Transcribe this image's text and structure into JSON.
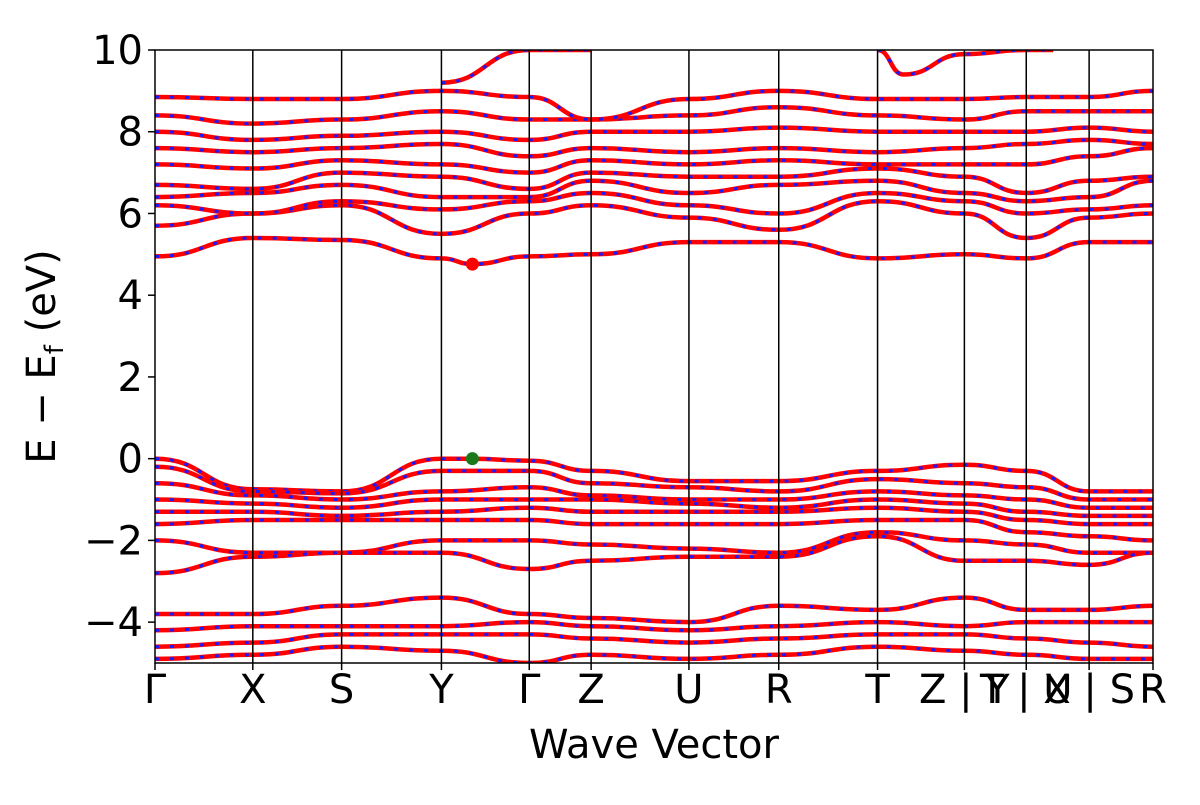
{
  "chart_data": {
    "type": "line",
    "title": "",
    "xlabel": "Wave Vector",
    "ylabel": "E − E",
    "ylabel_sub": "f",
    "ylabel_unit": "(eV)",
    "ylim": [
      -5,
      10
    ],
    "yticks": [
      {
        "value": 10,
        "label": "10"
      },
      {
        "value": 8,
        "label": "8"
      },
      {
        "value": 6,
        "label": "6"
      },
      {
        "value": 4,
        "label": "4"
      },
      {
        "value": 2,
        "label": "2"
      },
      {
        "value": 0,
        "label": "0"
      },
      {
        "value": -2,
        "label": "−2"
      },
      {
        "value": -4,
        "label": "−4"
      }
    ],
    "kpath_length": 10.0,
    "high_symmetry_points": [
      {
        "label": "Γ",
        "k": 0.0
      },
      {
        "label": "X",
        "k": 0.98
      },
      {
        "label": "S",
        "k": 1.87
      },
      {
        "label": "Y",
        "k": 2.87
      },
      {
        "label": "Γ",
        "k": 3.75
      },
      {
        "label": "Z",
        "k": 4.37
      },
      {
        "label": "U",
        "k": 5.35
      },
      {
        "label": "R",
        "k": 6.25
      },
      {
        "label": "T",
        "k": 7.24
      },
      {
        "label": "Z | Y",
        "k": 8.11
      },
      {
        "label": "T | U",
        "k": 8.73
      },
      {
        "label": "X | S",
        "k": 9.36
      },
      {
        "label": "R",
        "k": 10.0
      }
    ],
    "vbm": {
      "k": 3.18,
      "E": 0.0,
      "color": "#1a7a1a"
    },
    "cbm": {
      "k": 3.18,
      "E": 4.76,
      "color": "#ff0000"
    },
    "series": [
      {
        "style": "red solid + blue dashed overlay",
        "color_primary": "#ff0000",
        "color_secondary": "#1a1aff"
      }
    ],
    "bands": [
      {
        "k": [
          0,
          0.98,
          1.87,
          2.87,
          3.18,
          3.75,
          4.37,
          5.35,
          6.25,
          7.24,
          8.11,
          8.73,
          9.36,
          10
        ],
        "E": [
          0.0,
          -0.75,
          -0.8,
          0.0,
          0.0,
          -0.05,
          -0.3,
          -0.55,
          -0.55,
          -0.3,
          -0.15,
          -0.3,
          -0.8,
          -0.8
        ]
      },
      {
        "k": [
          0,
          0.98,
          1.87,
          2.87,
          3.75,
          4.37,
          5.35,
          6.25,
          7.24,
          8.11,
          8.73,
          9.36,
          10
        ],
        "E": [
          -0.2,
          -0.8,
          -0.85,
          -0.3,
          -0.3,
          -0.6,
          -0.7,
          -0.8,
          -0.5,
          -0.6,
          -0.7,
          -1.0,
          -1.0
        ]
      },
      {
        "k": [
          0,
          0.98,
          1.87,
          2.87,
          3.75,
          4.37,
          5.35,
          6.25,
          7.24,
          8.11,
          8.73,
          9.36,
          10
        ],
        "E": [
          -0.6,
          -0.9,
          -1.0,
          -0.8,
          -0.7,
          -0.9,
          -1.0,
          -1.0,
          -0.8,
          -0.9,
          -1.0,
          -1.2,
          -1.2
        ]
      },
      {
        "k": [
          0,
          0.98,
          1.87,
          2.87,
          3.75,
          4.37,
          5.35,
          6.25,
          7.24,
          8.11,
          8.73,
          9.36,
          10
        ],
        "E": [
          -1.0,
          -1.1,
          -1.2,
          -1.0,
          -1.0,
          -1.0,
          -1.1,
          -1.2,
          -1.0,
          -1.1,
          -1.3,
          -1.4,
          -1.4
        ]
      },
      {
        "k": [
          0,
          0.98,
          1.87,
          2.87,
          3.75,
          4.37,
          5.35,
          6.25,
          7.24,
          8.11,
          8.73,
          9.36,
          10
        ],
        "E": [
          -1.3,
          -1.3,
          -1.4,
          -1.3,
          -1.2,
          -1.3,
          -1.3,
          -1.3,
          -1.2,
          -1.3,
          -1.5,
          -1.6,
          -1.6
        ]
      },
      {
        "k": [
          0,
          0.98,
          1.87,
          2.87,
          3.75,
          4.37,
          5.35,
          6.25,
          7.24,
          8.11,
          8.73,
          9.36,
          10
        ],
        "E": [
          -1.6,
          -1.5,
          -1.5,
          -1.5,
          -1.5,
          -1.6,
          -1.6,
          -1.6,
          -1.5,
          -1.5,
          -1.8,
          -1.9,
          -2.0
        ]
      },
      {
        "k": [
          0,
          0.98,
          1.87,
          2.87,
          3.75,
          4.37,
          5.35,
          6.25,
          7.24,
          8.11,
          8.73,
          9.36,
          10
        ],
        "E": [
          -2.0,
          -2.3,
          -2.3,
          -2.0,
          -2.0,
          -2.1,
          -2.2,
          -2.3,
          -1.8,
          -2.0,
          -2.1,
          -2.3,
          -2.3
        ]
      },
      {
        "k": [
          0,
          0.98,
          1.87,
          2.87,
          3.75,
          4.37,
          5.35,
          6.25,
          7.24,
          8.11,
          8.73,
          9.36,
          10
        ],
        "E": [
          -2.8,
          -2.4,
          -2.3,
          -2.3,
          -2.7,
          -2.5,
          -2.4,
          -2.4,
          -1.9,
          -2.5,
          -2.5,
          -2.6,
          -2.3
        ]
      },
      {
        "k": [
          0,
          0.98,
          1.87,
          2.87,
          3.75,
          4.37,
          5.35,
          6.25,
          7.24,
          8.11,
          8.73,
          9.36,
          10
        ],
        "E": [
          -3.8,
          -3.8,
          -3.6,
          -3.4,
          -3.8,
          -3.9,
          -4.0,
          -3.6,
          -3.7,
          -3.4,
          -3.7,
          -3.7,
          -3.6
        ]
      },
      {
        "k": [
          0,
          0.98,
          1.87,
          2.87,
          3.75,
          4.37,
          5.35,
          6.25,
          7.24,
          8.11,
          8.73,
          9.36,
          10
        ],
        "E": [
          -4.2,
          -4.1,
          -4.1,
          -4.1,
          -4.0,
          -4.1,
          -4.2,
          -4.1,
          -4.0,
          -4.1,
          -4.0,
          -4.0,
          -4.0
        ]
      },
      {
        "k": [
          0,
          0.98,
          1.87,
          2.87,
          3.75,
          4.37,
          5.35,
          6.25,
          7.24,
          8.11,
          8.73,
          9.36,
          10
        ],
        "E": [
          -4.6,
          -4.5,
          -4.3,
          -4.3,
          -4.3,
          -4.4,
          -4.5,
          -4.4,
          -4.3,
          -4.3,
          -4.4,
          -4.5,
          -4.6
        ]
      },
      {
        "k": [
          0,
          0.98,
          1.87,
          2.87,
          3.75,
          4.37,
          5.35,
          6.25,
          7.24,
          8.11,
          8.73,
          9.36,
          10
        ],
        "E": [
          -4.9,
          -4.8,
          -4.6,
          -4.7,
          -5.0,
          -4.8,
          -4.9,
          -4.8,
          -4.6,
          -4.7,
          -4.8,
          -4.9,
          -4.9
        ]
      },
      {
        "k": [
          0,
          0.98,
          1.87,
          2.87,
          3.18,
          3.75,
          4.37,
          5.35,
          6.25,
          7.24,
          8.11,
          8.73,
          9.36,
          10
        ],
        "E": [
          4.95,
          5.4,
          5.35,
          4.9,
          4.76,
          4.95,
          5.0,
          5.3,
          5.3,
          4.9,
          5.0,
          4.9,
          5.3,
          5.3
        ]
      },
      {
        "k": [
          0,
          0.98,
          1.87,
          2.87,
          3.75,
          4.37,
          5.35,
          6.25,
          7.24,
          8.11,
          8.73,
          9.36,
          10
        ],
        "E": [
          5.7,
          6.0,
          6.2,
          5.5,
          6.0,
          6.2,
          5.9,
          5.6,
          6.3,
          6.0,
          5.4,
          5.9,
          6.0
        ]
      },
      {
        "k": [
          0,
          0.98,
          1.87,
          2.87,
          3.75,
          4.37,
          5.35,
          6.25,
          7.24,
          8.11,
          8.73,
          9.36,
          10
        ],
        "E": [
          6.2,
          6.0,
          6.3,
          6.1,
          6.3,
          6.5,
          6.2,
          6.0,
          6.5,
          6.3,
          6.0,
          6.1,
          6.2
        ]
      },
      {
        "k": [
          0,
          0.98,
          1.87,
          2.87,
          3.75,
          4.37,
          5.35,
          6.25,
          7.24,
          8.11,
          8.73,
          9.36,
          10
        ],
        "E": [
          6.4,
          6.5,
          6.7,
          6.4,
          6.4,
          6.8,
          6.5,
          6.7,
          6.8,
          6.5,
          6.3,
          6.4,
          6.8
        ]
      },
      {
        "k": [
          0,
          0.98,
          1.87,
          2.87,
          3.75,
          4.37,
          5.35,
          6.25,
          7.24,
          8.11,
          8.73,
          9.36,
          10
        ],
        "E": [
          6.7,
          6.6,
          7.0,
          6.9,
          6.6,
          7.0,
          6.9,
          6.9,
          7.1,
          6.9,
          6.5,
          6.8,
          6.9
        ]
      },
      {
        "k": [
          0,
          0.98,
          1.87,
          2.87,
          3.75,
          4.37,
          5.35,
          6.25,
          7.24,
          8.11,
          8.73,
          9.36,
          10
        ],
        "E": [
          7.2,
          7.1,
          7.3,
          7.2,
          7.0,
          7.3,
          7.2,
          7.3,
          7.2,
          7.2,
          7.2,
          7.4,
          7.6
        ]
      },
      {
        "k": [
          0,
          0.98,
          1.87,
          2.87,
          3.75,
          4.37,
          5.35,
          6.25,
          7.24,
          8.11,
          8.73,
          9.36,
          10
        ],
        "E": [
          7.6,
          7.5,
          7.6,
          7.7,
          7.4,
          7.6,
          7.5,
          7.6,
          7.5,
          7.6,
          7.7,
          7.8,
          7.7
        ]
      },
      {
        "k": [
          0,
          0.98,
          1.87,
          2.87,
          3.75,
          4.37,
          5.35,
          6.25,
          7.24,
          8.11,
          8.73,
          9.36,
          10
        ],
        "E": [
          8.0,
          7.8,
          7.9,
          8.0,
          7.8,
          8.0,
          8.0,
          8.1,
          8.0,
          8.0,
          8.0,
          8.1,
          8.0
        ]
      },
      {
        "k": [
          0,
          0.98,
          1.87,
          2.87,
          3.75,
          4.37,
          5.35,
          6.25,
          7.24,
          8.11,
          8.73,
          9.36,
          10
        ],
        "E": [
          8.4,
          8.2,
          8.3,
          8.5,
          8.3,
          8.3,
          8.4,
          8.6,
          8.4,
          8.3,
          8.5,
          8.5,
          8.5
        ]
      },
      {
        "k": [
          0,
          0.98,
          1.87,
          2.87,
          3.75,
          4.37,
          5.35,
          6.25,
          7.24,
          8.11,
          8.73,
          9.36,
          10
        ],
        "E": [
          8.85,
          8.8,
          8.8,
          9.0,
          8.85,
          8.3,
          8.8,
          9.0,
          8.8,
          8.8,
          8.85,
          8.85,
          9.0
        ]
      },
      {
        "k": [
          2.87,
          3.75,
          4.37
        ],
        "E": [
          9.2,
          10.0,
          10.0
        ]
      },
      {
        "k": [
          7.24,
          7.5,
          8.11,
          8.73,
          9.0
        ],
        "E": [
          10.0,
          9.4,
          9.9,
          10.0,
          10.0
        ]
      }
    ]
  }
}
